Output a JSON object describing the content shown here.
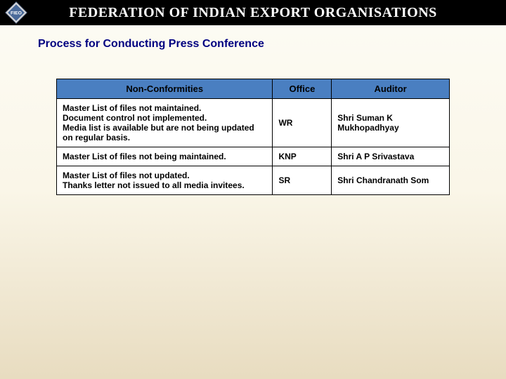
{
  "header": {
    "logo_text": "FIEO",
    "title": "FEDERATION OF INDIAN EXPORT ORGANISATIONS"
  },
  "subtitle": "Process for Conducting Press Conference",
  "table": {
    "columns": [
      "Non-Conformities",
      "Office",
      "Auditor"
    ],
    "header_bg": "#4a7fc1",
    "rows": [
      {
        "nc_lines": [
          "Master List of files not maintained.",
          "Document control not implemented.",
          "Media list is available but are not being updated on regular basis."
        ],
        "office": "WR",
        "auditor": "Shri Suman K Mukhopadhyay"
      },
      {
        "nc_lines": [
          "Master List of files not being maintained."
        ],
        "office": "KNP",
        "auditor": "Shri A P Srivastava"
      },
      {
        "nc_lines": [
          "Master List of files not updated.",
          "Thanks letter not issued to all media invitees."
        ],
        "office": "SR",
        "auditor": "Shri Chandranath Som"
      }
    ]
  }
}
